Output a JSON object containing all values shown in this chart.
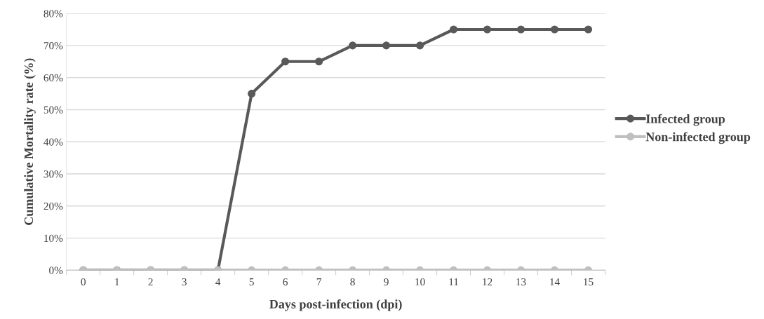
{
  "chart_data": {
    "type": "line",
    "xlabel": "Days post-infection (dpi)",
    "ylabel": "Cumulative Mortality rate (%)",
    "categories": [
      "0",
      "1",
      "2",
      "3",
      "4",
      "5",
      "6",
      "7",
      "8",
      "9",
      "10",
      "11",
      "12",
      "13",
      "14",
      "15"
    ],
    "series": [
      {
        "name": "Infected group",
        "color": "#595959",
        "values": [
          0,
          0,
          0,
          0,
          0,
          55,
          65,
          65,
          70,
          70,
          70,
          75,
          75,
          75,
          75,
          75
        ]
      },
      {
        "name": "Non-infected group",
        "color": "#bfbfbf",
        "values": [
          0,
          0,
          0,
          0,
          0,
          0,
          0,
          0,
          0,
          0,
          0,
          0,
          0,
          0,
          0,
          0
        ]
      }
    ],
    "ylim": [
      0,
      80
    ],
    "yticks": [
      {
        "value": 0,
        "label": "0%"
      },
      {
        "value": 10,
        "label": "10%"
      },
      {
        "value": 20,
        "label": "20%"
      },
      {
        "value": 30,
        "label": "30%"
      },
      {
        "value": 40,
        "label": "40%"
      },
      {
        "value": 50,
        "label": "50%"
      },
      {
        "value": 60,
        "label": "60%"
      },
      {
        "value": 70,
        "label": "70%"
      },
      {
        "value": 80,
        "label": "80%"
      }
    ],
    "grid": "y",
    "legend": "right",
    "marker": "circle",
    "line_style": "solid"
  }
}
